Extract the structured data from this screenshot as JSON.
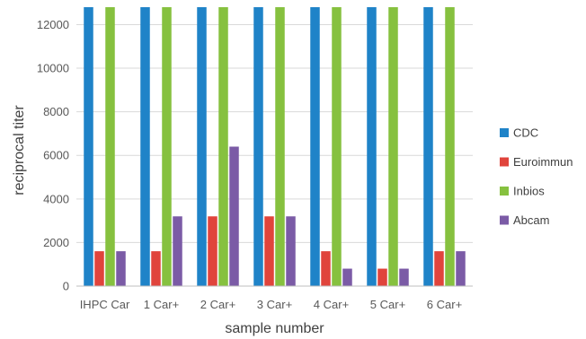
{
  "chart_data": {
    "type": "bar",
    "title": "",
    "xlabel": "sample number",
    "ylabel": "reciprocal titer",
    "ylim": [
      0,
      12800
    ],
    "yticks": [
      0,
      2000,
      4000,
      6000,
      8000,
      10000,
      12000
    ],
    "grid": true,
    "legend_position": "right",
    "categories": [
      "IHPC Car",
      "1 Car+",
      "2 Car+",
      "3 Car+",
      "4 Car+",
      "5 Car+",
      "6 Car+"
    ],
    "series": [
      {
        "name": "CDC",
        "color": "#1f83c8",
        "values": [
          12800,
          12800,
          12800,
          12800,
          12800,
          12800,
          12800
        ]
      },
      {
        "name": "Euroimmun",
        "color": "#e0443c",
        "values": [
          1600,
          1600,
          3200,
          3200,
          1600,
          800,
          1600
        ]
      },
      {
        "name": "Inbios",
        "color": "#86c13f",
        "values": [
          12800,
          12800,
          12800,
          12800,
          12800,
          12800,
          12800
        ]
      },
      {
        "name": "Abcam",
        "color": "#7b5ba6",
        "values": [
          1600,
          3200,
          6400,
          3200,
          800,
          800,
          1600
        ]
      }
    ]
  }
}
